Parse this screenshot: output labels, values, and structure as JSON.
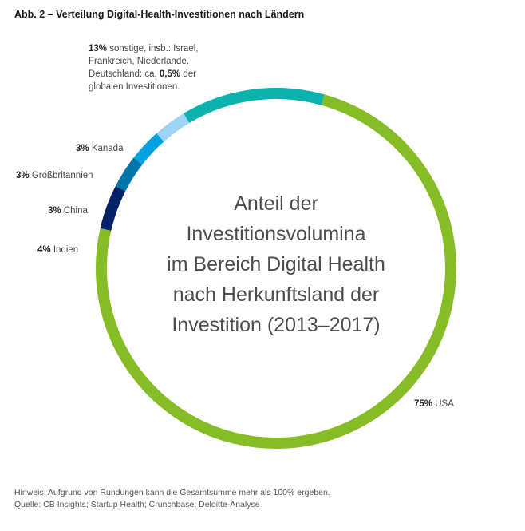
{
  "title": "Abb. 2 – Verteilung Digital-Health-Investitionen nach Ländern",
  "chart_data": {
    "type": "pie",
    "subtype": "donut",
    "center_text": [
      "Anteil der",
      "Investitionsvolumina",
      "im Bereich Digital Health",
      "nach Herkunftsland der",
      "Investition (2013–2017)"
    ],
    "segments": [
      {
        "label": "USA",
        "value": 75,
        "value_text": "75%",
        "color": "#86BC25"
      },
      {
        "label": "Indien",
        "value": 4,
        "value_text": "4%",
        "color": "#012169"
      },
      {
        "label": "China",
        "value": 3,
        "value_text": "3%",
        "color": "#0076A8"
      },
      {
        "label": "Großbritannien",
        "value": 3,
        "value_text": "3%",
        "color": "#00A3E0"
      },
      {
        "label": "Kanada",
        "value": 3,
        "value_text": "3%",
        "color": "#9DD4F3"
      },
      {
        "label": "sonstige, insb.: Israel, Frankreich, Niederlande.",
        "value": 13,
        "value_text": "13%",
        "color": "#0DB2AD"
      }
    ],
    "sonstige_lines": [
      "sonstige, insb.: Israel,",
      "Frankreich, Niederlande."
    ],
    "note_prefix": "Deutschland: ca.",
    "note_value": "0,5%",
    "note_suffix": "der",
    "note_line2": "globalen Investitionen."
  },
  "footer": {
    "hinweis": "Hinweis: Aufgrund von Rundungen kann die Gesamtsumme mehr als 100% ergeben.",
    "quelle": "Quelle: CB Insights; Startup Health; Crunchbase; Deloitte-Analyse"
  }
}
